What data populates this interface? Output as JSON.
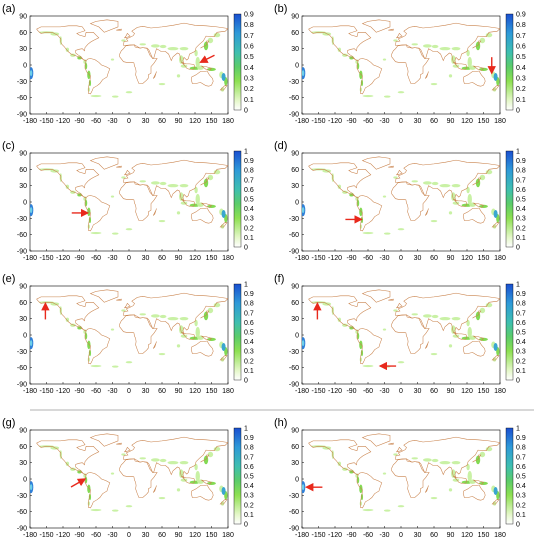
{
  "figure": {
    "panels": [
      {
        "label": "(a)",
        "colorbar_ticks": [
          "0.9",
          "0.8",
          "0.7",
          "0.6",
          "0.5",
          "0.4",
          "0.3",
          "0.2",
          "0.1",
          "0"
        ],
        "arrow": {
          "target_lon": 130,
          "target_lat": 5,
          "direction": "from-upper-right"
        }
      },
      {
        "label": "(b)",
        "colorbar_ticks": [
          "0.9",
          "0.8",
          "0.7",
          "0.6",
          "0.5",
          "0.4",
          "0.3",
          "0.2",
          "0.1",
          "0"
        ],
        "arrow": {
          "target_lon": 165,
          "target_lat": -15,
          "direction": "from-above"
        }
      },
      {
        "label": "(c)",
        "colorbar_ticks": [
          "1",
          "0.9",
          "0.8",
          "0.7",
          "0.6",
          "0.5",
          "0.4",
          "0.3",
          "0.2",
          "0.1",
          "0"
        ],
        "arrow": {
          "target_lon": -75,
          "target_lat": -20,
          "direction": "from-left"
        }
      },
      {
        "label": "(d)",
        "colorbar_ticks": [
          "1",
          "0.9",
          "0.8",
          "0.7",
          "0.6",
          "0.5",
          "0.4",
          "0.3",
          "0.2",
          "0.1",
          "0"
        ],
        "arrow": {
          "target_lon": -72,
          "target_lat": -32,
          "direction": "from-left"
        }
      },
      {
        "label": "(e)",
        "colorbar_ticks": [
          "1",
          "0.9",
          "0.8",
          "0.7",
          "0.6",
          "0.5",
          "0.4",
          "0.3",
          "0.2",
          "0.1",
          "0"
        ],
        "arrow": {
          "target_lon": -152,
          "target_lat": 58,
          "direction": "from-below"
        }
      },
      {
        "label": "(f)",
        "colorbar_ticks": [
          "1",
          "0.9",
          "0.8",
          "0.7",
          "0.6",
          "0.5",
          "0.4",
          "0.3",
          "0.2",
          "0.1",
          "0"
        ],
        "arrow": {
          "target_lon": -152,
          "target_lat": 58,
          "direction": "from-below"
        },
        "arrow2": {
          "target_lon": -38,
          "target_lat": -57,
          "direction": "from-right"
        }
      },
      {
        "label": "(g)",
        "colorbar_ticks": [
          "1",
          "0.9",
          "0.8",
          "0.7",
          "0.6",
          "0.5",
          "0.4",
          "0.3",
          "0.2",
          "0.1",
          "0"
        ],
        "arrow": {
          "target_lon": -80,
          "target_lat": 0,
          "direction": "from-lower-left"
        }
      },
      {
        "label": "(h)",
        "colorbar_ticks": [
          "1",
          "0.9",
          "0.8",
          "0.7",
          "0.6",
          "0.5",
          "0.4",
          "0.3",
          "0.2",
          "0.1",
          "0"
        ],
        "arrow": {
          "target_lon": -172,
          "target_lat": -15,
          "direction": "from-right"
        }
      }
    ],
    "x_ticks": [
      "-180",
      "-150",
      "-120",
      "-90",
      "-60",
      "-30",
      "0",
      "30",
      "60",
      "90",
      "120",
      "150",
      "180"
    ],
    "y_ticks": [
      "90",
      "60",
      "30",
      "0",
      "-30",
      "-60",
      "-90"
    ],
    "colors": {
      "coast": "#c8814a",
      "low": "#c6f0a0",
      "mid": "#7cd84a",
      "high": "#2f7fd8",
      "arrow": "#e8291c",
      "separator": "#999999"
    }
  }
}
